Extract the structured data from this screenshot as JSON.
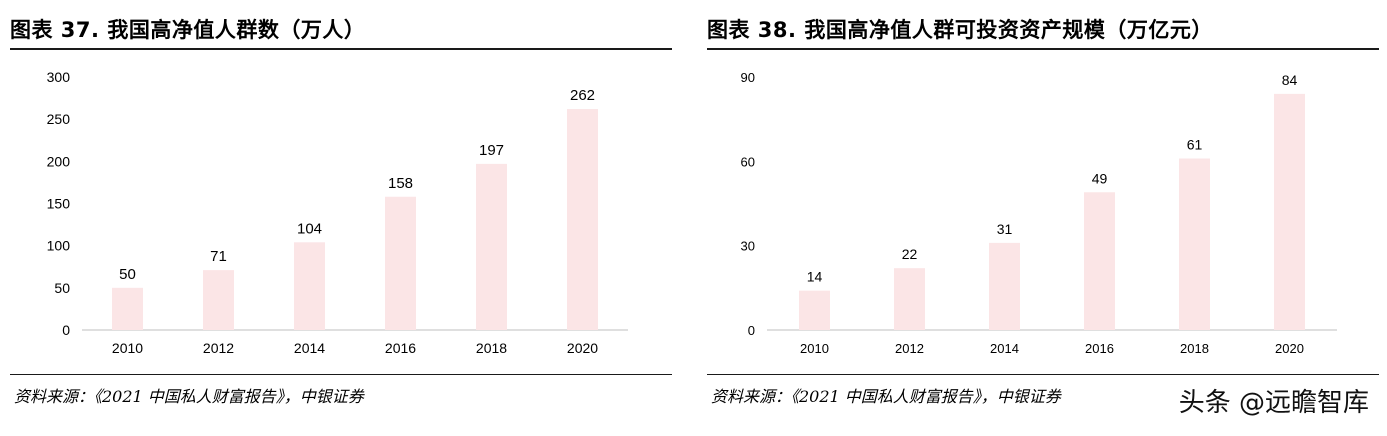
{
  "figures": [
    {
      "title": "图表 37. 我国高净值人群数（万人）",
      "source": "资料来源：《2021 中国私人财富报告》，中银证券"
    },
    {
      "title": "图表 38. 我国高净值人群可投资资产规模（万亿元）",
      "source": "资料来源：《2021 中国私人财富报告》，中银证券"
    }
  ],
  "watermark": "头条 @远瞻智库",
  "chart_data": [
    {
      "type": "bar",
      "title": "我国高净值人群数（万人）",
      "categories": [
        "2010",
        "2012",
        "2014",
        "2016",
        "2018",
        "2020"
      ],
      "values": [
        50,
        71,
        104,
        158,
        197,
        262
      ],
      "ylim": [
        0,
        300
      ],
      "yticks": [
        0,
        50,
        100,
        150,
        200,
        250,
        300
      ],
      "bar_color": "#fbe5e6",
      "grid": false,
      "legend": "none"
    },
    {
      "type": "bar",
      "title": "我国高净值人群可投资资产规模（万亿元）",
      "categories": [
        "2010",
        "2012",
        "2014",
        "2016",
        "2018",
        "2020"
      ],
      "values": [
        14,
        22,
        31,
        49,
        61,
        84
      ],
      "ylim": [
        0,
        90
      ],
      "yticks": [
        0,
        30,
        60,
        90
      ],
      "bar_color": "#fbe5e6",
      "grid": false,
      "legend": "none"
    }
  ]
}
